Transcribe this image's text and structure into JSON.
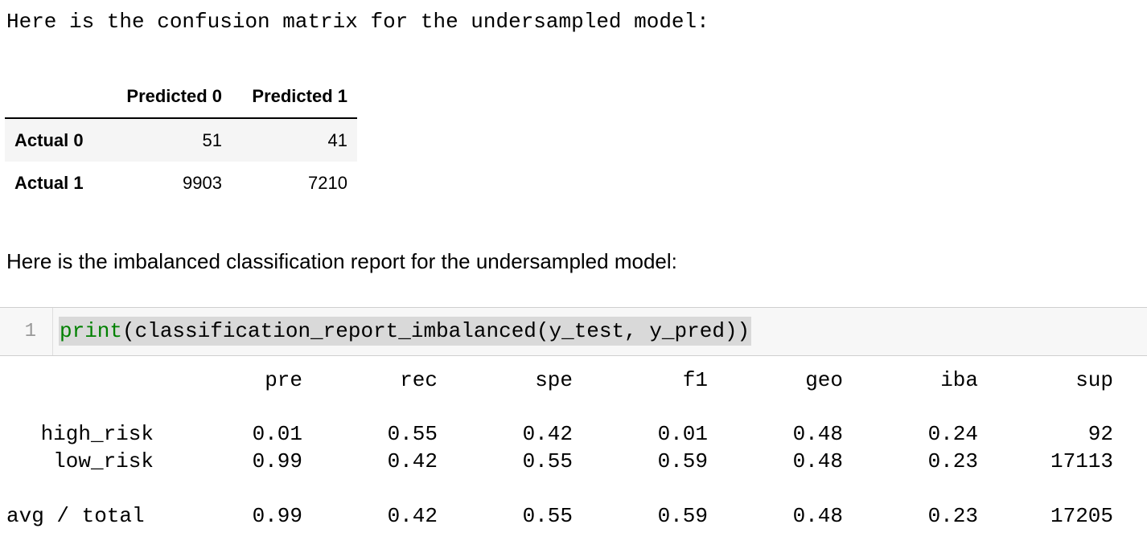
{
  "output_text_1": "Here is the confusion matrix for the undersampled model:",
  "confusion_matrix": {
    "columns": [
      "Predicted 0",
      "Predicted 1"
    ],
    "rows": [
      {
        "label": "Actual 0",
        "values": [
          "51",
          "41"
        ]
      },
      {
        "label": "Actual 1",
        "values": [
          "9903",
          "7210"
        ]
      }
    ]
  },
  "markdown_text_2": "Here is the imbalanced classification report for the undersampled model:",
  "code_cell": {
    "line_number": "1",
    "keyword": "print",
    "rest": "(classification_report_imbalanced(y_test, y_pred))"
  },
  "report": {
    "headers": [
      "pre",
      "rec",
      "spe",
      "f1",
      "geo",
      "iba",
      "sup"
    ],
    "rows": [
      {
        "label": "high_risk",
        "values": [
          "0.01",
          "0.55",
          "0.42",
          "0.01",
          "0.48",
          "0.24",
          "92"
        ]
      },
      {
        "label": "low_risk",
        "values": [
          "0.99",
          "0.42",
          "0.55",
          "0.59",
          "0.48",
          "0.23",
          "17113"
        ]
      }
    ],
    "total": {
      "label": "avg / total",
      "values": [
        "0.99",
        "0.42",
        "0.55",
        "0.59",
        "0.48",
        "0.23",
        "17205"
      ]
    }
  }
}
